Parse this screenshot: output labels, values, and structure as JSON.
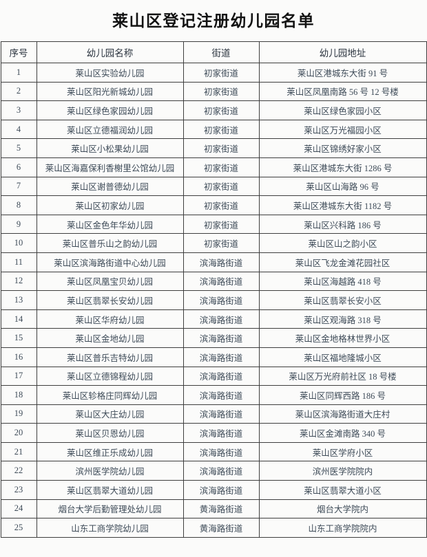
{
  "page": {
    "title": "莱山区登记注册幼儿园名单"
  },
  "table": {
    "columns": [
      "序号",
      "幼儿园名称",
      "街道",
      "幼儿园地址"
    ],
    "rows": [
      [
        "1",
        "莱山区实验幼儿园",
        "初家街道",
        "莱山区港城东大街 91 号"
      ],
      [
        "2",
        "莱山区阳光新城幼儿园",
        "初家街道",
        "莱山区凤凰南路 56 号 12 号楼"
      ],
      [
        "3",
        "莱山区绿色家园幼儿园",
        "初家街道",
        "莱山区绿色家园小区"
      ],
      [
        "4",
        "莱山区立德福润幼儿园",
        "初家街道",
        "莱山区万光福园小区"
      ],
      [
        "5",
        "莱山区小松果幼儿园",
        "初家街道",
        "莱山区锦绣好家小区"
      ],
      [
        "6",
        "莱山区海嘉保利香榭里公馆幼儿园",
        "初家街道",
        "莱山区港城东大街 1286 号"
      ],
      [
        "7",
        "莱山区谢普德幼儿园",
        "初家街道",
        "莱山区山海路 96 号"
      ],
      [
        "8",
        "莱山区初家幼儿园",
        "初家街道",
        "莱山区港城东大街 1182 号"
      ],
      [
        "9",
        "莱山区金色年华幼儿园",
        "初家街道",
        "莱山区兴科路 186 号"
      ],
      [
        "10",
        "莱山区普乐山之韵幼儿园",
        "初家街道",
        "莱山区山之韵小区"
      ],
      [
        "11",
        "莱山区滨海路街道中心幼儿园",
        "滨海路街道",
        "莱山区飞龙金滩花园社区"
      ],
      [
        "12",
        "莱山区凤凰宝贝幼儿园",
        "滨海路街道",
        "莱山区海越路 418 号"
      ],
      [
        "13",
        "莱山区翡翠长安幼儿园",
        "滨海路街道",
        "莱山区翡翠长安小区"
      ],
      [
        "14",
        "莱山区华府幼儿园",
        "滨海路街道",
        "莱山区观海路 318 号"
      ],
      [
        "15",
        "莱山区金地幼儿园",
        "滨海路街道",
        "莱山区金地格林世界小区"
      ],
      [
        "16",
        "莱山区普乐吉特幼儿园",
        "滨海路街道",
        "莱山区福地隆城小区"
      ],
      [
        "17",
        "莱山区立德锦程幼儿园",
        "滨海路街道",
        "莱山区万光府前社区 18 号楼"
      ],
      [
        "18",
        "莱山区轸格庄同辉幼儿园",
        "滨海路街道",
        "莱山区同辉西路 186 号"
      ],
      [
        "19",
        "莱山区大庄幼儿园",
        "滨海路街道",
        "莱山区滨海路街道大庄村"
      ],
      [
        "20",
        "莱山区贝恩幼儿园",
        "滨海路街道",
        "莱山区金滩南路 340 号"
      ],
      [
        "21",
        "莱山区维正乐成幼儿园",
        "滨海路街道",
        "莱山区学府小区"
      ],
      [
        "22",
        "滨州医学院幼儿园",
        "滨海路街道",
        "滨州医学院院内"
      ],
      [
        "23",
        "莱山区翡翠大道幼儿园",
        "滨海路街道",
        "莱山区翡翠大道小区"
      ],
      [
        "24",
        "烟台大学后勤管理处幼儿园",
        "黄海路街道",
        "烟台大学院内"
      ],
      [
        "25",
        "山东工商学院幼儿园",
        "黄海路街道",
        "山东工商学院院内"
      ]
    ]
  },
  "colors": {
    "title_text": "#121212",
    "body_text": "#3e4b58",
    "header_text": "#2c3540",
    "border": "#3e3e3e",
    "background": "#fbfbfa"
  }
}
